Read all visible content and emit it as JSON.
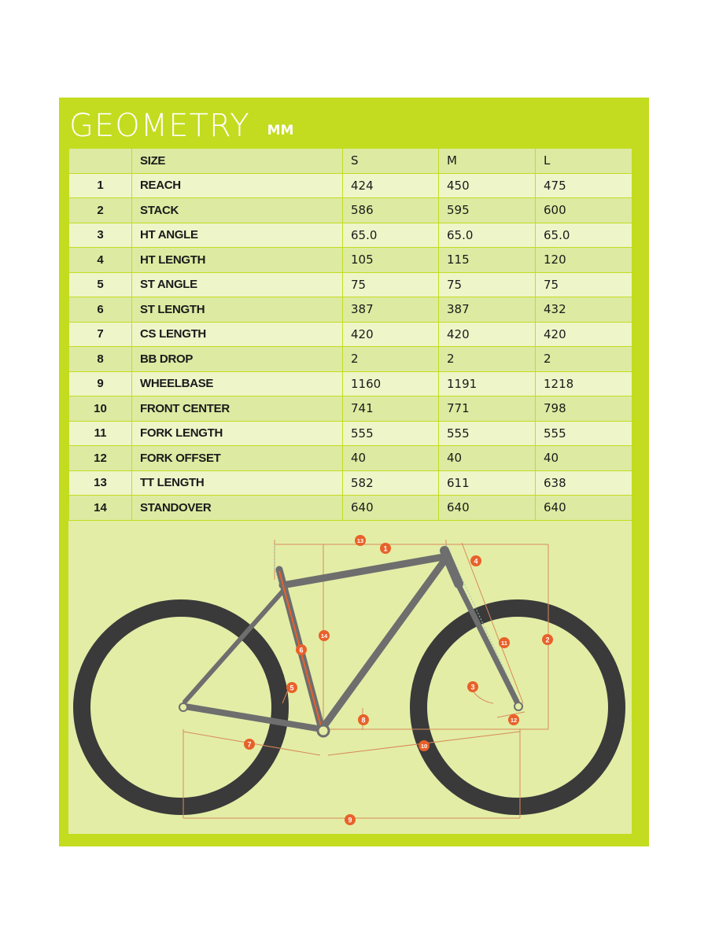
{
  "header": {
    "title": "GEOMETRY",
    "unit": "MM"
  },
  "table": {
    "header": {
      "num": "",
      "label": "SIZE",
      "s": "S",
      "m": "M",
      "l": "L"
    },
    "rows": [
      {
        "num": "1",
        "label": "REACH",
        "s": "424",
        "m": "450",
        "l": "475"
      },
      {
        "num": "2",
        "label": "STACK",
        "s": "586",
        "m": "595",
        "l": "600"
      },
      {
        "num": "3",
        "label": "HT ANGLE",
        "s": "65.0",
        "m": "65.0",
        "l": "65.0"
      },
      {
        "num": "4",
        "label": "HT LENGTH",
        "s": "105",
        "m": "115",
        "l": "120"
      },
      {
        "num": "5",
        "label": "ST ANGLE",
        "s": "75",
        "m": "75",
        "l": "75"
      },
      {
        "num": "6",
        "label": "ST LENGTH",
        "s": "387",
        "m": "387",
        "l": "432"
      },
      {
        "num": "7",
        "label": "CS LENGTH",
        "s": "420",
        "m": "420",
        "l": "420"
      },
      {
        "num": "8",
        "label": "BB DROP",
        "s": "2",
        "m": "2",
        "l": "2"
      },
      {
        "num": "9",
        "label": "WHEELBASE",
        "s": "1160",
        "m": "1191",
        "l": "1218"
      },
      {
        "num": "10",
        "label": "FRONT CENTER",
        "s": "741",
        "m": "771",
        "l": "798"
      },
      {
        "num": "11",
        "label": "FORK LENGTH",
        "s": "555",
        "m": "555",
        "l": "555"
      },
      {
        "num": "12",
        "label": "FORK OFFSET",
        "s": "40",
        "m": "40",
        "l": "40"
      },
      {
        "num": "13",
        "label": "TT LENGTH",
        "s": "582",
        "m": "611",
        "l": "638"
      },
      {
        "num": "14",
        "label": "STANDOVER",
        "s": "640",
        "m": "640",
        "l": "640"
      }
    ]
  },
  "diagram": {
    "markers": [
      "1",
      "2",
      "3",
      "4",
      "5",
      "6",
      "7",
      "8",
      "9",
      "10",
      "11",
      "12",
      "13",
      "14"
    ],
    "colors": {
      "panel": "#c3dc1f",
      "marker": "#e8612a",
      "frame": "#6e6e6e",
      "tire": "#3a3a3a"
    }
  }
}
